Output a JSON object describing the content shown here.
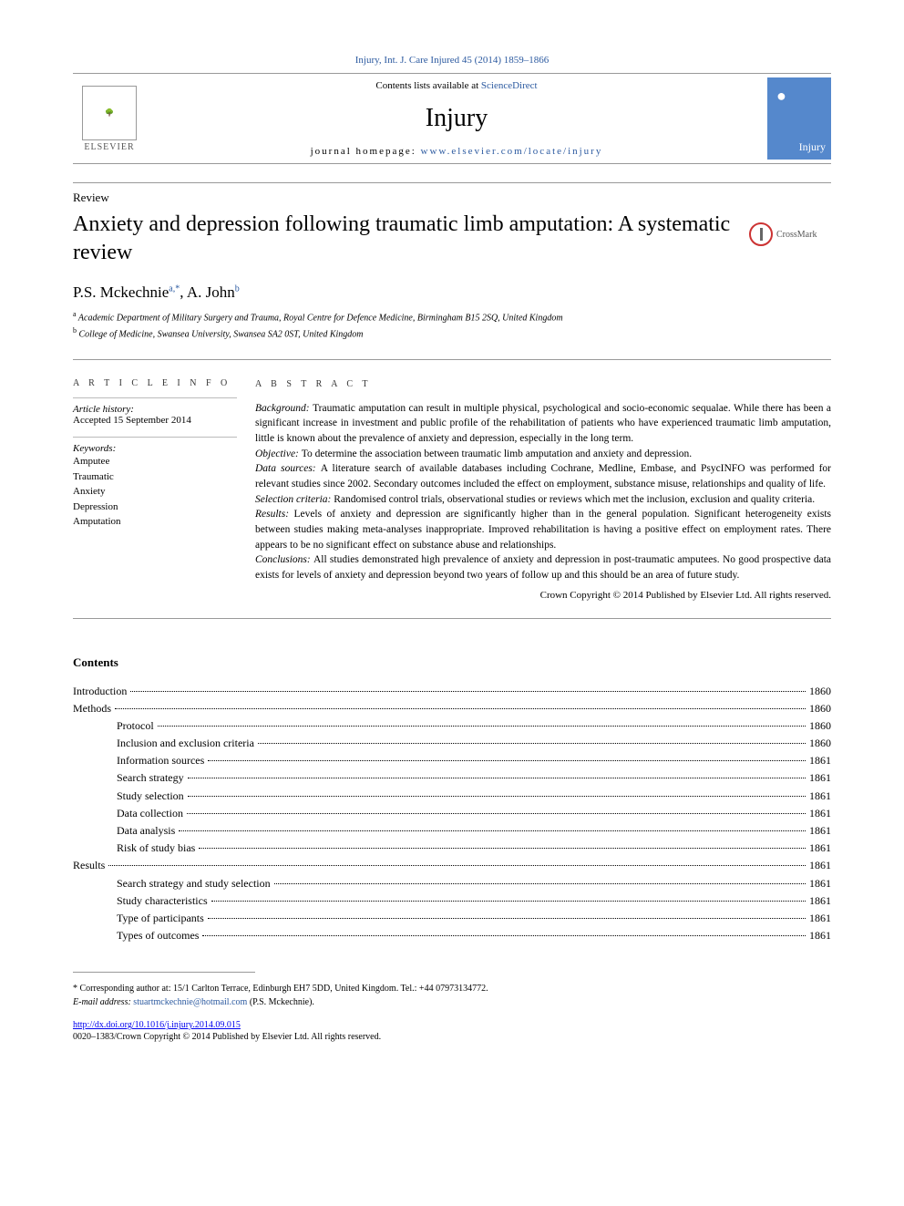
{
  "journal_ref": "Injury, Int. J. Care Injured 45 (2014) 1859–1866",
  "header": {
    "contents_prefix": "Contents lists available at ",
    "contents_link": "ScienceDirect",
    "journal_name": "Injury",
    "homepage_prefix": "journal homepage: ",
    "homepage_url": "www.elsevier.com/locate/injury",
    "publisher": "ELSEVIER",
    "cover_label": "Injury"
  },
  "article_type": "Review",
  "title": "Anxiety and depression following traumatic limb amputation: A systematic review",
  "crossmark": "CrossMark",
  "authors": {
    "a1_name": "P.S. Mckechnie",
    "a1_sup": "a,*",
    "sep": ", ",
    "a2_name": "A. John",
    "a2_sup": "b"
  },
  "affiliations": {
    "a": "Academic Department of Military Surgery and Trauma, Royal Centre for Defence Medicine, Birmingham B15 2SQ, United Kingdom",
    "b": "College of Medicine, Swansea University, Swansea SA2 0ST, United Kingdom"
  },
  "article_info": {
    "heading": "A R T I C L E  I N F O",
    "history_label": "Article history:",
    "history_accepted": "Accepted 15 September 2014",
    "keywords_label": "Keywords:",
    "keywords": [
      "Amputee",
      "Traumatic",
      "Anxiety",
      "Depression",
      "Amputation"
    ]
  },
  "abstract": {
    "heading": "A B S T R A C T",
    "background_label": "Background: ",
    "background": "Traumatic amputation can result in multiple physical, psychological and socio-economic sequalae. While there has been a significant increase in investment and public profile of the rehabilitation of patients who have experienced traumatic limb amputation, little is known about the prevalence of anxiety and depression, especially in the long term.",
    "objective_label": "Objective: ",
    "objective": "To determine the association between traumatic limb amputation and anxiety and depression.",
    "datasources_label": "Data sources: ",
    "datasources": "A literature search of available databases including Cochrane, Medline, Embase, and PsycINFO was performed for relevant studies since 2002. Secondary outcomes included the effect on employment, substance misuse, relationships and quality of life.",
    "selection_label": "Selection criteria: ",
    "selection": "Randomised control trials, observational studies or reviews which met the inclusion, exclusion and quality criteria.",
    "results_label": "Results: ",
    "results": "Levels of anxiety and depression are significantly higher than in the general population. Significant heterogeneity exists between studies making meta-analyses inappropriate. Improved rehabilitation is having a positive effect on employment rates. There appears to be no significant effect on substance abuse and relationships.",
    "conclusions_label": "Conclusions: ",
    "conclusions": "All studies demonstrated high prevalence of anxiety and depression in post-traumatic amputees. No good prospective data exists for levels of anxiety and depression beyond two years of follow up and this should be an area of future study.",
    "copyright": "Crown Copyright © 2014 Published by Elsevier Ltd. All rights reserved."
  },
  "contents_heading": "Contents",
  "toc": [
    {
      "label": "Introduction",
      "page": "1860",
      "indent": 0
    },
    {
      "label": "Methods",
      "page": "1860",
      "indent": 0
    },
    {
      "label": "Protocol",
      "page": "1860",
      "indent": 1
    },
    {
      "label": "Inclusion and exclusion criteria",
      "page": "1860",
      "indent": 1
    },
    {
      "label": "Information sources",
      "page": "1861",
      "indent": 1
    },
    {
      "label": "Search strategy",
      "page": "1861",
      "indent": 1
    },
    {
      "label": "Study selection",
      "page": "1861",
      "indent": 1
    },
    {
      "label": "Data collection",
      "page": "1861",
      "indent": 1
    },
    {
      "label": "Data analysis",
      "page": "1861",
      "indent": 1
    },
    {
      "label": "Risk of study bias",
      "page": "1861",
      "indent": 1
    },
    {
      "label": "Results",
      "page": "1861",
      "indent": 0
    },
    {
      "label": "Search strategy and study selection",
      "page": "1861",
      "indent": 1
    },
    {
      "label": "Study characteristics",
      "page": "1861",
      "indent": 1
    },
    {
      "label": "Type of participants",
      "page": "1861",
      "indent": 1
    },
    {
      "label": "Types of outcomes",
      "page": "1861",
      "indent": 1
    }
  ],
  "footer": {
    "corr_label": "* Corresponding author at: ",
    "corr_text": "15/1 Carlton Terrace, Edinburgh EH7 5DD, United Kingdom. Tel.: +44 07973134772.",
    "email_label": "E-mail address: ",
    "email": "stuartmckechnie@hotmail.com",
    "email_suffix": " (P.S. Mckechnie).",
    "doi": "http://dx.doi.org/10.1016/j.injury.2014.09.015",
    "copyright": "0020–1383/Crown Copyright © 2014 Published by Elsevier Ltd. All rights reserved."
  },
  "colors": {
    "link": "#2c5aa0",
    "text": "#000000",
    "rule": "#999999",
    "cover_bg": "#5588cc"
  }
}
